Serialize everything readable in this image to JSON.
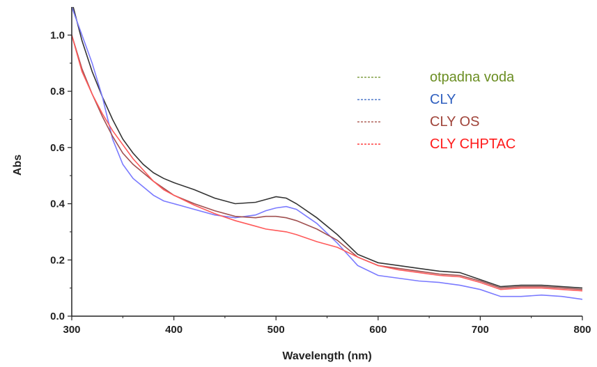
{
  "chart_data": {
    "type": "line",
    "title": "",
    "xlabel": "Wavelength (nm)",
    "ylabel": "Abs",
    "xlim": [
      300,
      800
    ],
    "ylim": [
      0.0,
      1.1
    ],
    "x_ticks": [
      "300",
      "400",
      "500",
      "600",
      "700",
      "800"
    ],
    "y_ticks": [
      "0.0",
      "0.2",
      "0.4",
      "0.6",
      "0.8",
      "1.0"
    ],
    "grid": false,
    "legend_position": "top-right",
    "legend": [
      {
        "label": "otpadna voda",
        "color": "#6b8e23"
      },
      {
        "label": "CLY",
        "color": "#2f5fbf"
      },
      {
        "label": "CLY OS",
        "color": "#a0443a"
      },
      {
        "label": "CLY CHPTAC",
        "color": "#ff1a1a"
      }
    ],
    "series": [
      {
        "color": "#333333",
        "x": [
          300,
          310,
          320,
          330,
          340,
          350,
          360,
          370,
          380,
          390,
          400,
          420,
          440,
          460,
          480,
          490,
          500,
          510,
          520,
          540,
          560,
          580,
          600,
          620,
          640,
          660,
          680,
          700,
          720,
          740,
          760,
          780,
          800
        ],
        "y": [
          1.12,
          0.98,
          0.87,
          0.78,
          0.7,
          0.63,
          0.58,
          0.54,
          0.51,
          0.49,
          0.475,
          0.45,
          0.42,
          0.4,
          0.405,
          0.415,
          0.425,
          0.42,
          0.4,
          0.35,
          0.29,
          0.22,
          0.19,
          0.18,
          0.17,
          0.16,
          0.155,
          0.13,
          0.105,
          0.11,
          0.11,
          0.105,
          0.1
        ]
      },
      {
        "color": "#7a7aff",
        "x": [
          300,
          310,
          320,
          330,
          340,
          350,
          360,
          370,
          380,
          390,
          400,
          420,
          440,
          460,
          480,
          490,
          500,
          510,
          520,
          540,
          560,
          580,
          600,
          620,
          640,
          660,
          680,
          700,
          720,
          740,
          760,
          780,
          800
        ],
        "y": [
          1.1,
          1.0,
          0.9,
          0.78,
          0.63,
          0.54,
          0.49,
          0.46,
          0.43,
          0.41,
          0.4,
          0.38,
          0.36,
          0.35,
          0.36,
          0.375,
          0.385,
          0.39,
          0.38,
          0.33,
          0.26,
          0.18,
          0.145,
          0.135,
          0.125,
          0.12,
          0.11,
          0.095,
          0.07,
          0.07,
          0.075,
          0.07,
          0.06
        ]
      },
      {
        "color": "#a05050",
        "x": [
          300,
          310,
          320,
          330,
          340,
          350,
          360,
          370,
          380,
          390,
          400,
          420,
          440,
          460,
          480,
          490,
          500,
          510,
          520,
          540,
          560,
          580,
          600,
          620,
          640,
          660,
          680,
          700,
          720,
          740,
          760,
          780,
          800
        ],
        "y": [
          1.0,
          0.88,
          0.79,
          0.71,
          0.64,
          0.58,
          0.54,
          0.51,
          0.48,
          0.455,
          0.43,
          0.4,
          0.375,
          0.355,
          0.35,
          0.355,
          0.355,
          0.35,
          0.34,
          0.31,
          0.27,
          0.21,
          0.18,
          0.17,
          0.16,
          0.15,
          0.145,
          0.125,
          0.1,
          0.105,
          0.105,
          0.1,
          0.095
        ]
      },
      {
        "color": "#ff5a5a",
        "x": [
          300,
          310,
          320,
          330,
          340,
          350,
          360,
          370,
          380,
          390,
          400,
          420,
          440,
          460,
          480,
          490,
          500,
          510,
          520,
          540,
          560,
          580,
          600,
          620,
          640,
          660,
          680,
          700,
          720,
          740,
          760,
          780,
          800
        ],
        "y": [
          1.0,
          0.87,
          0.79,
          0.72,
          0.66,
          0.61,
          0.56,
          0.52,
          0.48,
          0.45,
          0.43,
          0.395,
          0.365,
          0.34,
          0.32,
          0.31,
          0.305,
          0.3,
          0.29,
          0.265,
          0.245,
          0.21,
          0.18,
          0.165,
          0.155,
          0.145,
          0.14,
          0.12,
          0.095,
          0.1,
          0.1,
          0.095,
          0.09
        ]
      }
    ]
  }
}
